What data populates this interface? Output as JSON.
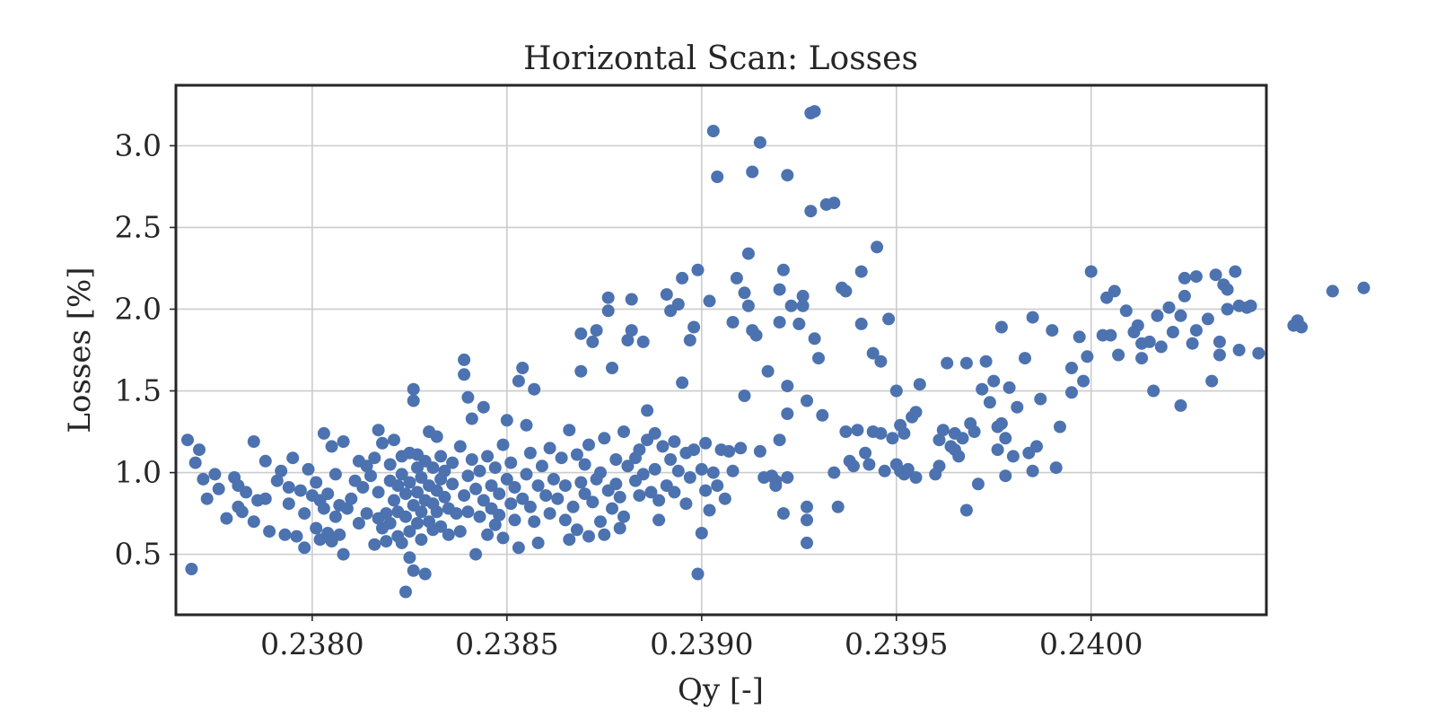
{
  "chart_data": {
    "type": "scatter",
    "title": "Horizontal Scan: Losses",
    "xlabel": "Qy [-]",
    "ylabel": "Losses [%]",
    "xlim": [
      0.23765,
      0.24045
    ],
    "ylim": [
      0.13,
      3.37
    ],
    "xticks": [
      0.238,
      0.2385,
      0.239,
      0.2395,
      0.24
    ],
    "xtick_labels": [
      "0.2380",
      "0.2385",
      "0.2390",
      "0.2395",
      "0.2400"
    ],
    "yticks": [
      0.5,
      1.0,
      1.5,
      2.0,
      2.5,
      3.0
    ],
    "ytick_labels": [
      "0.5",
      "1.0",
      "1.5",
      "2.0",
      "2.5",
      "3.0"
    ],
    "grid": true,
    "marker_color": "#4c72b0",
    "points": [
      [
        0.23768,
        1.2
      ],
      [
        0.23769,
        0.41
      ],
      [
        0.23771,
        1.14
      ],
      [
        0.2377,
        1.06
      ],
      [
        0.23772,
        0.96
      ],
      [
        0.23773,
        0.84
      ],
      [
        0.23775,
        0.99
      ],
      [
        0.23776,
        0.9
      ],
      [
        0.23778,
        0.72
      ],
      [
        0.2378,
        0.97
      ],
      [
        0.23781,
        0.92
      ],
      [
        0.23781,
        0.79
      ],
      [
        0.23782,
        0.76
      ],
      [
        0.23783,
        0.88
      ],
      [
        0.23785,
        0.7
      ],
      [
        0.23785,
        1.19
      ],
      [
        0.23786,
        0.83
      ],
      [
        0.23788,
        0.84
      ],
      [
        0.23788,
        1.07
      ],
      [
        0.23789,
        0.64
      ],
      [
        0.23791,
        0.95
      ],
      [
        0.23792,
        1.01
      ],
      [
        0.23793,
        0.62
      ],
      [
        0.23794,
        0.81
      ],
      [
        0.23794,
        0.91
      ],
      [
        0.23795,
        1.09
      ],
      [
        0.23796,
        0.61
      ],
      [
        0.23797,
        0.89
      ],
      [
        0.23798,
        0.54
      ],
      [
        0.23798,
        0.75
      ],
      [
        0.23799,
        1.02
      ],
      [
        0.238,
        0.86
      ],
      [
        0.23801,
        0.94
      ],
      [
        0.23801,
        0.66
      ],
      [
        0.23802,
        0.83
      ],
      [
        0.23802,
        0.59
      ],
      [
        0.23803,
        1.24
      ],
      [
        0.23803,
        0.78
      ],
      [
        0.23804,
        0.63
      ],
      [
        0.23804,
        0.87
      ],
      [
        0.23805,
        0.58
      ],
      [
        0.23805,
        1.16
      ],
      [
        0.23806,
        0.73
      ],
      [
        0.23806,
        0.99
      ],
      [
        0.23807,
        0.62
      ],
      [
        0.23807,
        0.8
      ],
      [
        0.23808,
        1.19
      ],
      [
        0.23808,
        0.5
      ],
      [
        0.23809,
        0.78
      ],
      [
        0.2381,
        0.84
      ],
      [
        0.23811,
        0.95
      ],
      [
        0.23812,
        1.07
      ],
      [
        0.23812,
        0.69
      ],
      [
        0.23813,
        0.91
      ],
      [
        0.23814,
        1.04
      ],
      [
        0.23814,
        0.75
      ],
      [
        0.23815,
        0.98
      ],
      [
        0.23816,
        0.56
      ],
      [
        0.23816,
        1.09
      ],
      [
        0.23817,
        0.72
      ],
      [
        0.23817,
        1.26
      ],
      [
        0.23817,
        0.88
      ],
      [
        0.23818,
        0.66
      ],
      [
        0.23818,
        1.18
      ],
      [
        0.23819,
        0.75
      ],
      [
        0.23819,
        0.58
      ],
      [
        0.2382,
        0.95
      ],
      [
        0.2382,
        1.05
      ],
      [
        0.2382,
        0.69
      ],
      [
        0.23821,
        0.83
      ],
      [
        0.23821,
        1.2
      ],
      [
        0.23822,
        0.61
      ],
      [
        0.23822,
        0.92
      ],
      [
        0.23822,
        0.76
      ],
      [
        0.23823,
        1.1
      ],
      [
        0.23823,
        0.57
      ],
      [
        0.23823,
        0.99
      ],
      [
        0.23824,
        0.73
      ],
      [
        0.23824,
        0.87
      ],
      [
        0.23824,
        0.27
      ],
      [
        0.23825,
        1.12
      ],
      [
        0.23825,
        0.64
      ],
      [
        0.23825,
        0.94
      ],
      [
        0.23825,
        0.48
      ],
      [
        0.23826,
        0.8
      ],
      [
        0.23826,
        1.51
      ],
      [
        0.23826,
        1.44
      ],
      [
        0.23826,
        0.4
      ],
      [
        0.23827,
        1.03
      ],
      [
        0.23827,
        0.69
      ],
      [
        0.23827,
        0.88
      ],
      [
        0.23827,
        1.11
      ],
      [
        0.23828,
        0.76
      ],
      [
        0.23828,
        0.59
      ],
      [
        0.23828,
        0.97
      ],
      [
        0.23829,
        0.83
      ],
      [
        0.23829,
        1.07
      ],
      [
        0.23829,
        0.38
      ],
      [
        0.2383,
        0.7
      ],
      [
        0.2383,
        0.92
      ],
      [
        0.2383,
        1.25
      ],
      [
        0.23831,
        0.81
      ],
      [
        0.23831,
        1.03
      ],
      [
        0.23831,
        0.65
      ],
      [
        0.23832,
        0.89
      ],
      [
        0.23832,
        1.22
      ],
      [
        0.23832,
        0.76
      ],
      [
        0.23833,
        0.96
      ],
      [
        0.23833,
        1.1
      ],
      [
        0.23833,
        0.67
      ],
      [
        0.23834,
        0.85
      ],
      [
        0.23834,
        1.01
      ],
      [
        0.23835,
        0.78
      ],
      [
        0.23835,
        0.62
      ],
      [
        0.23836,
        0.93
      ],
      [
        0.23836,
        1.06
      ],
      [
        0.23837,
        0.75
      ],
      [
        0.23838,
        1.16
      ],
      [
        0.23838,
        0.64
      ],
      [
        0.23839,
        0.86
      ],
      [
        0.23839,
        1.6
      ],
      [
        0.23839,
        1.69
      ],
      [
        0.2384,
        1.46
      ],
      [
        0.2384,
        0.98
      ],
      [
        0.2384,
        0.76
      ],
      [
        0.23841,
        1.33
      ],
      [
        0.23841,
        1.08
      ],
      [
        0.23842,
        0.9
      ],
      [
        0.23842,
        0.5
      ],
      [
        0.23843,
        0.73
      ],
      [
        0.23843,
        1.01
      ],
      [
        0.23844,
        1.4
      ],
      [
        0.23844,
        0.83
      ],
      [
        0.23845,
        0.62
      ],
      [
        0.23845,
        1.1
      ],
      [
        0.23846,
        0.78
      ],
      [
        0.23846,
        0.92
      ],
      [
        0.23847,
        0.68
      ],
      [
        0.23847,
        1.03
      ],
      [
        0.23848,
        0.87
      ],
      [
        0.23848,
        0.74
      ],
      [
        0.23849,
        1.17
      ],
      [
        0.23849,
        0.6
      ],
      [
        0.2385,
        0.96
      ],
      [
        0.2385,
        1.32
      ],
      [
        0.23851,
        0.81
      ],
      [
        0.23851,
        1.06
      ],
      [
        0.23852,
        0.71
      ],
      [
        0.23852,
        0.91
      ],
      [
        0.23853,
        1.56
      ],
      [
        0.23853,
        0.54
      ],
      [
        0.23854,
        0.84
      ],
      [
        0.23854,
        1.64
      ],
      [
        0.23855,
        0.99
      ],
      [
        0.23855,
        1.29
      ],
      [
        0.23856,
        0.79
      ],
      [
        0.23856,
        1.12
      ],
      [
        0.23857,
        0.7
      ],
      [
        0.23857,
        1.51
      ],
      [
        0.23858,
        0.92
      ],
      [
        0.23858,
        0.57
      ],
      [
        0.23859,
        1.04
      ],
      [
        0.2386,
        0.86
      ],
      [
        0.23861,
        1.15
      ],
      [
        0.23861,
        0.75
      ],
      [
        0.23862,
        0.96
      ],
      [
        0.23863,
        0.84
      ],
      [
        0.23864,
        1.09
      ],
      [
        0.23865,
        0.71
      ],
      [
        0.23865,
        0.92
      ],
      [
        0.23866,
        0.59
      ],
      [
        0.23866,
        1.26
      ],
      [
        0.23867,
        0.79
      ],
      [
        0.23868,
        1.11
      ],
      [
        0.23868,
        0.65
      ],
      [
        0.23869,
        1.85
      ],
      [
        0.23869,
        0.94
      ],
      [
        0.23869,
        1.62
      ],
      [
        0.2387,
        0.87
      ],
      [
        0.2387,
        1.05
      ],
      [
        0.23871,
        0.61
      ],
      [
        0.23871,
        1.17
      ],
      [
        0.23872,
        0.82
      ],
      [
        0.23872,
        1.8
      ],
      [
        0.23873,
        0.96
      ],
      [
        0.23873,
        1.87
      ],
      [
        0.23874,
        0.7
      ],
      [
        0.23874,
        1.0
      ],
      [
        0.23875,
        0.62
      ],
      [
        0.23875,
        1.21
      ],
      [
        0.23876,
        0.89
      ],
      [
        0.23876,
        2.07
      ],
      [
        0.23876,
        1.99
      ],
      [
        0.23877,
        0.78
      ],
      [
        0.23877,
        1.64
      ],
      [
        0.23878,
        0.93
      ],
      [
        0.23878,
        1.08
      ],
      [
        0.23879,
        0.66
      ],
      [
        0.23879,
        0.85
      ],
      [
        0.2388,
        1.25
      ],
      [
        0.2388,
        0.73
      ],
      [
        0.23881,
        1.81
      ],
      [
        0.23881,
        1.04
      ],
      [
        0.23882,
        2.06
      ],
      [
        0.23882,
        1.87
      ],
      [
        0.23883,
        0.95
      ],
      [
        0.23883,
        1.09
      ],
      [
        0.23884,
        0.86
      ],
      [
        0.23884,
        1.14
      ],
      [
        0.23885,
        1.8
      ],
      [
        0.23885,
        0.99
      ],
      [
        0.23886,
        1.38
      ],
      [
        0.23886,
        1.2
      ],
      [
        0.23887,
        0.88
      ],
      [
        0.23888,
        1.24
      ],
      [
        0.23888,
        1.02
      ],
      [
        0.23889,
        0.71
      ],
      [
        0.23889,
        0.83
      ],
      [
        0.2389,
        1.16
      ],
      [
        0.23891,
        0.92
      ],
      [
        0.23891,
        2.09
      ],
      [
        0.23892,
        1.08
      ],
      [
        0.23892,
        1.99
      ],
      [
        0.23893,
        0.88
      ],
      [
        0.23893,
        1.19
      ],
      [
        0.23894,
        2.03
      ],
      [
        0.23894,
        1.01
      ],
      [
        0.23895,
        2.19
      ],
      [
        0.23895,
        1.55
      ],
      [
        0.23896,
        1.12
      ],
      [
        0.23896,
        0.81
      ],
      [
        0.23897,
        1.81
      ],
      [
        0.23897,
        0.97
      ],
      [
        0.23898,
        1.14
      ],
      [
        0.23898,
        1.89
      ],
      [
        0.23899,
        2.24
      ],
      [
        0.23899,
        0.38
      ],
      [
        0.239,
        1.02
      ],
      [
        0.239,
        0.63
      ],
      [
        0.23901,
        1.18
      ],
      [
        0.23901,
        0.89
      ],
      [
        0.23902,
        2.05
      ],
      [
        0.23902,
        0.77
      ],
      [
        0.23903,
        3.09
      ],
      [
        0.23903,
        1.0
      ],
      [
        0.23904,
        2.81
      ],
      [
        0.23904,
        0.92
      ],
      [
        0.23905,
        1.14
      ],
      [
        0.23906,
        0.84
      ],
      [
        0.23907,
        1.13
      ],
      [
        0.23908,
        1.92
      ],
      [
        0.23908,
        1.01
      ],
      [
        0.23909,
        2.19
      ],
      [
        0.2391,
        1.15
      ],
      [
        0.23911,
        2.1
      ],
      [
        0.23911,
        1.47
      ],
      [
        0.23912,
        2.34
      ],
      [
        0.23912,
        2.02
      ],
      [
        0.23913,
        2.84
      ],
      [
        0.23913,
        1.87
      ],
      [
        0.23914,
        1.84
      ],
      [
        0.23915,
        3.02
      ],
      [
        0.23915,
        1.13
      ],
      [
        0.23916,
        0.97
      ],
      [
        0.23917,
        1.62
      ],
      [
        0.23918,
        0.98
      ],
      [
        0.23919,
        0.95
      ],
      [
        0.23919,
        0.92
      ],
      [
        0.2392,
        1.2
      ],
      [
        0.2392,
        2.12
      ],
      [
        0.2392,
        1.92
      ],
      [
        0.23921,
        0.75
      ],
      [
        0.23921,
        2.24
      ],
      [
        0.23922,
        2.82
      ],
      [
        0.23922,
        1.36
      ],
      [
        0.23922,
        1.53
      ],
      [
        0.23922,
        0.97
      ],
      [
        0.23923,
        2.02
      ],
      [
        0.23925,
        1.91
      ],
      [
        0.23926,
        2.02
      ],
      [
        0.23926,
        2.08
      ],
      [
        0.23927,
        0.79
      ],
      [
        0.23927,
        1.44
      ],
      [
        0.23927,
        0.57
      ],
      [
        0.23927,
        0.71
      ],
      [
        0.23928,
        3.2
      ],
      [
        0.23928,
        2.6
      ],
      [
        0.23929,
        3.21
      ],
      [
        0.23929,
        1.82
      ],
      [
        0.2393,
        1.7
      ],
      [
        0.23931,
        1.35
      ],
      [
        0.23932,
        2.64
      ],
      [
        0.23934,
        2.65
      ],
      [
        0.23934,
        1.0
      ],
      [
        0.23935,
        0.79
      ],
      [
        0.23936,
        2.13
      ],
      [
        0.23937,
        2.11
      ],
      [
        0.23937,
        1.25
      ],
      [
        0.23938,
        1.07
      ],
      [
        0.23939,
        1.04
      ],
      [
        0.2394,
        1.26
      ],
      [
        0.23941,
        2.23
      ],
      [
        0.23941,
        1.91
      ],
      [
        0.23942,
        1.12
      ],
      [
        0.23943,
        1.05
      ],
      [
        0.23944,
        1.73
      ],
      [
        0.23944,
        1.25
      ],
      [
        0.23945,
        2.38
      ],
      [
        0.23946,
        1.24
      ],
      [
        0.23946,
        1.68
      ],
      [
        0.23947,
        1.01
      ],
      [
        0.23948,
        1.94
      ],
      [
        0.23949,
        1.21
      ],
      [
        0.2395,
        1.5
      ],
      [
        0.2395,
        1.05
      ],
      [
        0.23951,
        1.29
      ],
      [
        0.23951,
        1.01
      ],
      [
        0.23952,
        0.99
      ],
      [
        0.23952,
        1.24
      ],
      [
        0.23953,
        1.02
      ],
      [
        0.23954,
        1.34
      ],
      [
        0.23955,
        0.97
      ],
      [
        0.23955,
        1.37
      ],
      [
        0.23956,
        1.54
      ],
      [
        0.2396,
        0.99
      ],
      [
        0.23961,
        1.04
      ],
      [
        0.23961,
        1.2
      ],
      [
        0.23962,
        1.26
      ],
      [
        0.23963,
        1.67
      ],
      [
        0.23964,
        1.16
      ],
      [
        0.23965,
        1.14
      ],
      [
        0.23965,
        1.24
      ],
      [
        0.23966,
        1.1
      ],
      [
        0.23967,
        1.21
      ],
      [
        0.23968,
        0.77
      ],
      [
        0.23968,
        1.67
      ],
      [
        0.23969,
        1.3
      ],
      [
        0.2397,
        1.25
      ],
      [
        0.23971,
        0.93
      ],
      [
        0.23972,
        1.51
      ],
      [
        0.23973,
        1.68
      ],
      [
        0.23974,
        1.43
      ],
      [
        0.23975,
        1.56
      ],
      [
        0.23976,
        1.28
      ],
      [
        0.23976,
        1.14
      ],
      [
        0.23977,
        1.89
      ],
      [
        0.23977,
        1.3
      ],
      [
        0.23978,
        1.21
      ],
      [
        0.23978,
        0.98
      ],
      [
        0.23979,
        1.52
      ],
      [
        0.2398,
        1.1
      ],
      [
        0.23981,
        1.4
      ],
      [
        0.23983,
        1.7
      ],
      [
        0.23984,
        1.12
      ],
      [
        0.23985,
        1.95
      ],
      [
        0.23985,
        1.01
      ],
      [
        0.23986,
        1.16
      ],
      [
        0.23987,
        1.45
      ],
      [
        0.2399,
        1.87
      ],
      [
        0.23991,
        1.03
      ],
      [
        0.23992,
        1.28
      ],
      [
        0.23995,
        1.64
      ],
      [
        0.23995,
        1.49
      ],
      [
        0.23997,
        1.83
      ],
      [
        0.23998,
        1.56
      ],
      [
        0.23999,
        1.71
      ],
      [
        0.24,
        2.23
      ],
      [
        0.24003,
        1.84
      ],
      [
        0.24004,
        2.07
      ],
      [
        0.24005,
        1.84
      ],
      [
        0.24006,
        2.11
      ],
      [
        0.24007,
        1.72
      ],
      [
        0.24009,
        1.99
      ],
      [
        0.24011,
        1.86
      ],
      [
        0.24012,
        1.9
      ],
      [
        0.24013,
        1.79
      ],
      [
        0.24013,
        1.7
      ],
      [
        0.24015,
        1.8
      ],
      [
        0.24016,
        1.5
      ],
      [
        0.24017,
        1.96
      ],
      [
        0.24018,
        1.77
      ],
      [
        0.2402,
        2.01
      ],
      [
        0.24021,
        1.86
      ],
      [
        0.24023,
        1.41
      ],
      [
        0.24023,
        1.96
      ],
      [
        0.24024,
        2.08
      ],
      [
        0.24024,
        2.19
      ],
      [
        0.24026,
        1.79
      ],
      [
        0.24027,
        2.2
      ],
      [
        0.24027,
        1.87
      ],
      [
        0.2403,
        1.94
      ],
      [
        0.24031,
        1.56
      ],
      [
        0.24032,
        2.21
      ],
      [
        0.24033,
        1.72
      ],
      [
        0.24033,
        1.8
      ],
      [
        0.24034,
        2.15
      ],
      [
        0.24035,
        2.12
      ],
      [
        0.24035,
        2.0
      ],
      [
        0.24037,
        2.23
      ],
      [
        0.24038,
        1.75
      ],
      [
        0.24038,
        2.02
      ],
      [
        0.2404,
        2.01
      ],
      [
        0.24041,
        2.02
      ],
      [
        0.24043,
        1.73
      ],
      [
        0.24052,
        1.9
      ],
      [
        0.24053,
        1.93
      ],
      [
        0.24054,
        1.89
      ],
      [
        0.24062,
        2.11
      ],
      [
        0.2407,
        2.13
      ]
    ]
  }
}
